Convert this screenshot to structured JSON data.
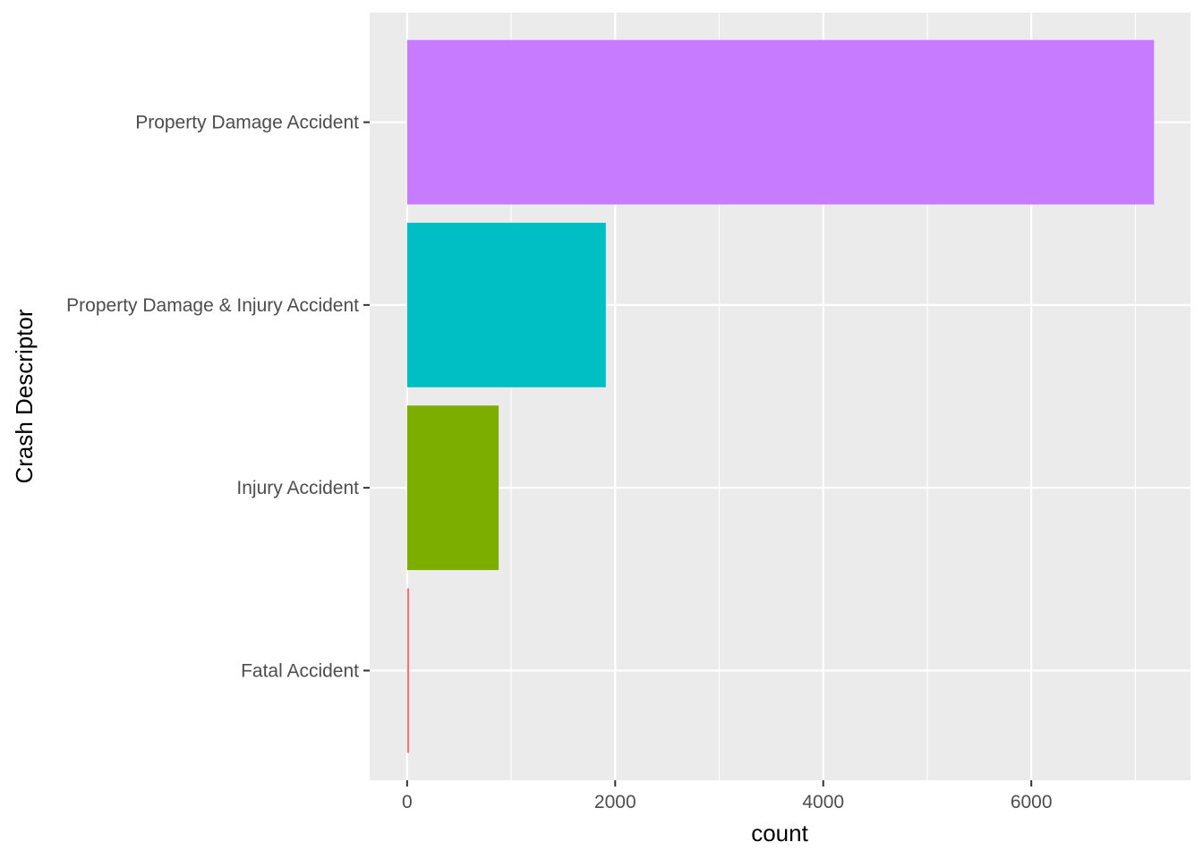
{
  "chart_data": {
    "type": "bar",
    "orientation": "horizontal",
    "title": "",
    "xlabel": "count",
    "ylabel": "Crash Descriptor",
    "categories": [
      "Fatal Accident",
      "Injury Accident",
      "Property Damage & Injury Accident",
      "Property Damage Accident"
    ],
    "values": [
      20,
      880,
      1910,
      7180
    ],
    "colors": [
      "#F8766D",
      "#7CAE00",
      "#00BFC4",
      "#C77CFF"
    ],
    "xlim": [
      -360,
      7530
    ],
    "x_ticks": [
      0,
      2000,
      4000,
      6000
    ],
    "x_tick_labels": [
      "0",
      "2000",
      "4000",
      "6000"
    ],
    "grid": true,
    "legend": "none",
    "panel_background": "#EBEBEB",
    "grid_color": "#FFFFFF"
  }
}
